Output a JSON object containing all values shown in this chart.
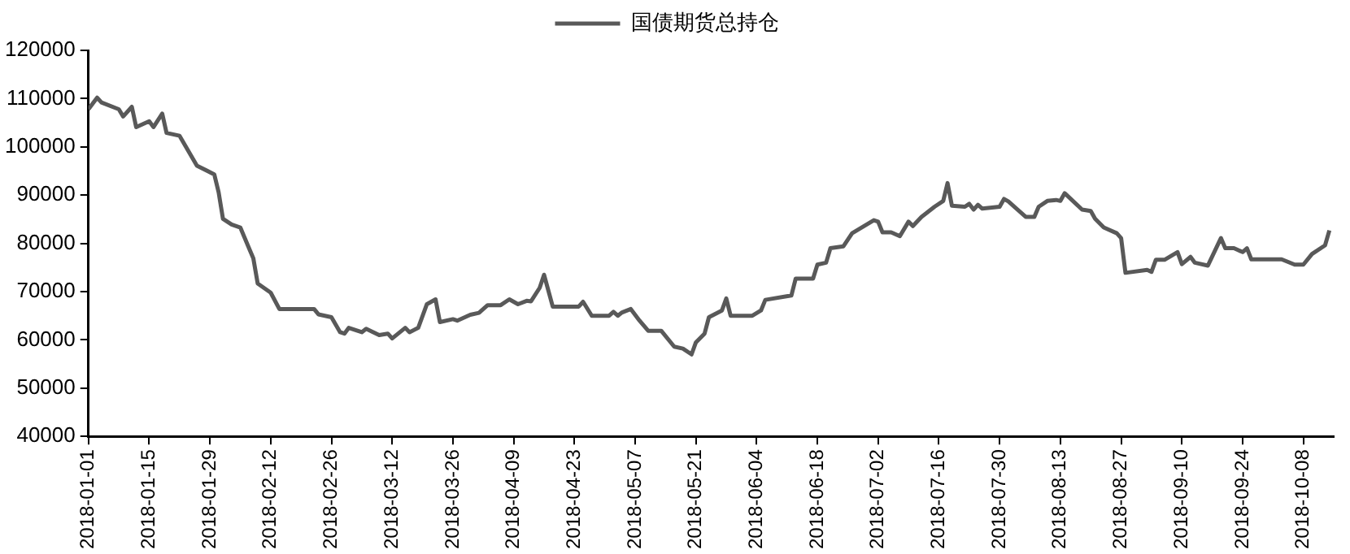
{
  "chart_data": {
    "type": "line",
    "legend": "top",
    "grid": false,
    "marker": "none",
    "line_style": "solid",
    "xlim": [
      "2018-01-01",
      "2018-10-15"
    ],
    "xticks": [
      "2018-01-01",
      "2018-01-15",
      "2018-01-29",
      "2018-02-12",
      "2018-02-26",
      "2018-03-12",
      "2018-03-26",
      "2018-04-09",
      "2018-04-23",
      "2018-05-07",
      "2018-05-21",
      "2018-06-04",
      "2018-06-18",
      "2018-07-02",
      "2018-07-16",
      "2018-07-30",
      "2018-08-13",
      "2018-08-27",
      "2018-09-10",
      "2018-09-24",
      "2018-10-08"
    ],
    "ylim": [
      40000,
      120000
    ],
    "yticks": [
      40000,
      50000,
      60000,
      70000,
      80000,
      90000,
      100000,
      110000,
      120000
    ],
    "x": [
      "2018-01-01",
      "2018-01-03",
      "2018-01-04",
      "2018-01-08",
      "2018-01-09",
      "2018-01-11",
      "2018-01-12",
      "2018-01-15",
      "2018-01-16",
      "2018-01-18",
      "2018-01-19",
      "2018-01-22",
      "2018-01-26",
      "2018-01-30",
      "2018-01-31",
      "2018-02-01",
      "2018-02-03",
      "2018-02-05",
      "2018-02-07",
      "2018-02-08",
      "2018-02-09",
      "2018-02-12",
      "2018-02-14",
      "2018-02-22",
      "2018-02-23",
      "2018-02-26",
      "2018-02-28",
      "2018-03-01",
      "2018-03-02",
      "2018-03-05",
      "2018-03-06",
      "2018-03-09",
      "2018-03-11",
      "2018-03-12",
      "2018-03-15",
      "2018-03-16",
      "2018-03-18",
      "2018-03-20",
      "2018-03-22",
      "2018-03-23",
      "2018-03-26",
      "2018-03-27",
      "2018-03-30",
      "2018-04-01",
      "2018-04-03",
      "2018-04-06",
      "2018-04-08",
      "2018-04-10",
      "2018-04-12",
      "2018-04-13",
      "2018-04-15",
      "2018-04-16",
      "2018-04-18",
      "2018-04-24",
      "2018-04-25",
      "2018-04-27",
      "2018-05-01",
      "2018-05-02",
      "2018-05-03",
      "2018-05-04",
      "2018-05-06",
      "2018-05-08",
      "2018-05-10",
      "2018-05-13",
      "2018-05-16",
      "2018-05-18",
      "2018-05-20",
      "2018-05-21",
      "2018-05-23",
      "2018-05-24",
      "2018-05-27",
      "2018-05-28",
      "2018-05-29",
      "2018-06-03",
      "2018-06-05",
      "2018-06-06",
      "2018-06-12",
      "2018-06-13",
      "2018-06-17",
      "2018-06-18",
      "2018-06-20",
      "2018-06-21",
      "2018-06-24",
      "2018-06-26",
      "2018-07-01",
      "2018-07-02",
      "2018-07-03",
      "2018-07-05",
      "2018-07-07",
      "2018-07-09",
      "2018-07-10",
      "2018-07-12",
      "2018-07-15",
      "2018-07-17",
      "2018-07-18",
      "2018-07-19",
      "2018-07-22",
      "2018-07-23",
      "2018-07-24",
      "2018-07-25",
      "2018-07-26",
      "2018-07-30",
      "2018-07-31",
      "2018-08-01",
      "2018-08-05",
      "2018-08-07",
      "2018-08-08",
      "2018-08-10",
      "2018-08-12",
      "2018-08-13",
      "2018-08-14",
      "2018-08-18",
      "2018-08-20",
      "2018-08-21",
      "2018-08-23",
      "2018-08-26",
      "2018-08-27",
      "2018-08-28",
      "2018-09-02",
      "2018-09-03",
      "2018-09-04",
      "2018-09-06",
      "2018-09-09",
      "2018-09-10",
      "2018-09-12",
      "2018-09-13",
      "2018-09-16",
      "2018-09-19",
      "2018-09-20",
      "2018-09-22",
      "2018-09-24",
      "2018-09-25",
      "2018-09-26",
      "2018-10-03",
      "2018-10-06",
      "2018-10-08",
      "2018-10-10",
      "2018-10-13",
      "2018-10-14"
    ],
    "series": [
      {
        "name": "国债期货总持仓",
        "color": "#595959",
        "values": [
          107800,
          110200,
          109200,
          107800,
          106300,
          108300,
          104100,
          105300,
          104100,
          106900,
          102900,
          102300,
          96100,
          94300,
          90600,
          85100,
          83900,
          83300,
          79000,
          76900,
          71700,
          69800,
          66400,
          66400,
          65300,
          64700,
          61600,
          61300,
          62500,
          61600,
          62300,
          61000,
          61300,
          60300,
          62500,
          61600,
          62500,
          67400,
          68400,
          63700,
          64300,
          64000,
          65200,
          65600,
          67200,
          67200,
          68400,
          67400,
          68100,
          68000,
          70800,
          73500,
          66900,
          66900,
          67900,
          65000,
          65000,
          65800,
          65000,
          65700,
          66400,
          64000,
          61900,
          61900,
          58600,
          58200,
          57000,
          59500,
          61300,
          64700,
          66100,
          68600,
          65000,
          65000,
          66100,
          68300,
          69200,
          72700,
          72700,
          75600,
          76000,
          79000,
          79400,
          82100,
          84800,
          84500,
          82300,
          82300,
          81500,
          84500,
          83600,
          85500,
          87600,
          88800,
          92500,
          87800,
          87600,
          88200,
          87000,
          88000,
          87200,
          87600,
          89200,
          88700,
          85500,
          85500,
          87600,
          88800,
          89000,
          88800,
          90400,
          87000,
          86700,
          85100,
          83300,
          82100,
          81100,
          73900,
          74500,
          74100,
          76600,
          76600,
          78200,
          75700,
          77200,
          76000,
          75400,
          81100,
          79000,
          79000,
          78200,
          79000,
          76700,
          76700,
          75600,
          75600,
          77800,
          79600,
          82700
        ]
      }
    ]
  }
}
